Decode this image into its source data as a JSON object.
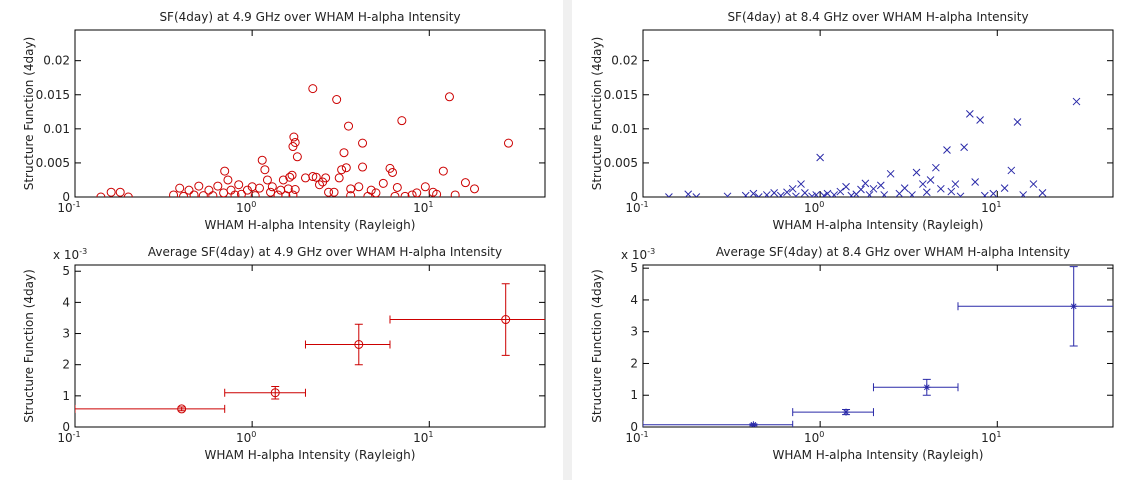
{
  "chart_data": [
    {
      "type": "scatter",
      "title": "SF(4day) at 4.9 GHz over WHAM H-alpha Intensity",
      "xlabel": "WHAM H-alpha Intensity (Rayleigh)",
      "ylabel": "Structure Function (4day)",
      "color": "#cc0000",
      "marker": "o",
      "xscale": "log",
      "xlim": [
        0.1,
        45
      ],
      "ylim": [
        0,
        0.0245
      ],
      "xticks": [
        {
          "value": 0.1,
          "label": "10",
          "exponent": "-1"
        },
        {
          "value": 1,
          "label": "10",
          "exponent": "0"
        },
        {
          "value": 10,
          "label": "10",
          "exponent": "1"
        }
      ],
      "yticks": [
        0,
        0.005,
        0.01,
        0.015,
        0.02
      ],
      "x": [
        0.14,
        0.16,
        0.18,
        0.2,
        0.36,
        0.39,
        0.41,
        0.44,
        0.47,
        0.5,
        0.53,
        0.57,
        0.6,
        0.64,
        0.69,
        0.7,
        0.73,
        0.76,
        0.8,
        0.84,
        0.87,
        0.94,
        1.0,
        1.04,
        1.1,
        1.14,
        1.18,
        1.22,
        1.27,
        1.3,
        1.4,
        1.45,
        1.5,
        1.55,
        1.6,
        1.63,
        1.68,
        1.7,
        1.75,
        1.7,
        1.72,
        1.75,
        1.8,
        2.0,
        2.2,
        2.5,
        2.6,
        2.7,
        2.2,
        2.3,
        2.4,
        2.9,
        3.1,
        3.3,
        3.4,
        3.5,
        3.6,
        3.0,
        3.2,
        3.6,
        4.0,
        4.2,
        4.2,
        4.5,
        4.7,
        5.0,
        5.5,
        6.0,
        6.2,
        6.4,
        7.0,
        6.6,
        7.3,
        8.0,
        8.5,
        9.5,
        10.5,
        11,
        12,
        13,
        14,
        16,
        18,
        28
      ],
      "values": [
        0,
        0.0007,
        0.0007,
        0,
        0.0003,
        0.0013,
        0.0001,
        0.001,
        0.0003,
        0.0016,
        0.0002,
        0.001,
        0.0002,
        0.0016,
        0.0006,
        0.0038,
        0.0025,
        0.001,
        0.0003,
        0.0018,
        0.0004,
        0.001,
        0.0015,
        0.0002,
        0.0013,
        0.0054,
        0.004,
        0.0025,
        0.0007,
        0.0015,
        0.0003,
        0.001,
        0.0025,
        0.0002,
        0.0012,
        0.0029,
        0.0032,
        0.0003,
        0.0011,
        0.0074,
        0.0088,
        0.008,
        0.0059,
        0.0028,
        0.003,
        0.0022,
        0.0028,
        0.0007,
        0.0159,
        0.0029,
        0.0018,
        0.0007,
        0.0028,
        0.0065,
        0.0043,
        0.0104,
        0.0012,
        0.0143,
        0.004,
        0.0002,
        0.0015,
        0.0044,
        0.0079,
        0.0001,
        0.001,
        0.0006,
        0.002,
        0.0042,
        0.0036,
        0.0001,
        0.0112,
        0.0014,
        0.0001,
        0.0003,
        0.0006,
        0.0015,
        0.0007,
        0.0004,
        0.0038,
        0.0147,
        0.0003,
        0.0021,
        0.0012,
        0.0079
      ]
    },
    {
      "type": "scatter",
      "title": "SF(4day) at 8.4 GHz over WHAM H-alpha Intensity",
      "xlabel": "WHAM H-alpha Intensity (Rayleigh)",
      "ylabel": "Structure Function (4day)",
      "color": "#2a2aa8",
      "marker": "x",
      "xscale": "log",
      "xlim": [
        0.1,
        45
      ],
      "ylim": [
        0,
        0.0245
      ],
      "xticks": [
        {
          "value": 0.1,
          "label": "10",
          "exponent": "-1"
        },
        {
          "value": 1,
          "label": "10",
          "exponent": "0"
        },
        {
          "value": 10,
          "label": "10",
          "exponent": "1"
        }
      ],
      "yticks": [
        0,
        0.005,
        0.01,
        0.015,
        0.02
      ],
      "x": [
        0.14,
        0.18,
        0.2,
        0.3,
        0.38,
        0.42,
        0.45,
        0.5,
        0.55,
        0.6,
        0.65,
        0.7,
        0.73,
        0.78,
        0.82,
        0.9,
        0.95,
        1.0,
        1.05,
        1.1,
        1.2,
        1.3,
        1.4,
        1.5,
        1.6,
        1.7,
        1.8,
        1.9,
        2.0,
        2.2,
        2.3,
        2.5,
        2.8,
        3.0,
        3.3,
        3.5,
        3.8,
        4.0,
        4.2,
        4.5,
        4.8,
        5.2,
        5.5,
        5.8,
        6.2,
        6.5,
        7.0,
        7.5,
        8.0,
        8.5,
        9.5,
        11,
        12,
        13,
        14,
        16,
        18,
        28
      ],
      "values": [
        0,
        0.0004,
        0,
        0.0001,
        0.0002,
        0.0005,
        0,
        0.0003,
        0.0006,
        0.0002,
        0.0007,
        0.0012,
        0.0001,
        0.0019,
        0.0006,
        0.0001,
        0.0003,
        0.0058,
        0.0002,
        0.0005,
        0.0003,
        0.0008,
        0.0015,
        0.0002,
        0.0004,
        0.0011,
        0.002,
        0.0003,
        0.0012,
        0.0017,
        0.0003,
        0.0034,
        0.0005,
        0.0013,
        0.0003,
        0.0036,
        0.0019,
        0.0007,
        0.0025,
        0.0043,
        0.0012,
        0.0069,
        0.0008,
        0.0019,
        0.0001,
        0.0073,
        0.0122,
        0.0022,
        0.0113,
        0.0002,
        0.0005,
        0.0013,
        0.0039,
        0.011,
        0.0003,
        0.0019,
        0.0006,
        0.014
      ]
    },
    {
      "type": "errorbar",
      "title": "Average SF(4day) at 4.9 GHz over WHAM H-alpha Intensity",
      "xlabel": "WHAM H-alpha Intensity (Rayleigh)",
      "ylabel": "Structure Function (4day)",
      "y_scale_label": "x 10",
      "y_scale_exponent": "-3",
      "color": "#cc0000",
      "marker": "o",
      "xscale": "log",
      "xlim": [
        0.1,
        45
      ],
      "ylim": [
        0,
        5.2
      ],
      "xticks": [
        {
          "value": 0.1,
          "label": "10",
          "exponent": "-1"
        },
        {
          "value": 1,
          "label": "10",
          "exponent": "0"
        },
        {
          "value": 10,
          "label": "10",
          "exponent": "1"
        }
      ],
      "yticks": [
        0,
        1,
        2,
        3,
        4,
        5
      ],
      "x": [
        0.4,
        1.35,
        4,
        27
      ],
      "values": [
        0.58,
        1.1,
        2.65,
        3.45
      ],
      "yerr": [
        0.06,
        0.2,
        0.65,
        1.15
      ],
      "x_lower": [
        0.1,
        0.7,
        2,
        6
      ],
      "x_upper": [
        0.7,
        2,
        6,
        50
      ]
    },
    {
      "type": "errorbar",
      "title": "Average SF(4day) at 8.4 GHz over WHAM H-alpha Intensity",
      "xlabel": "WHAM H-alpha Intensity (Rayleigh)",
      "ylabel": "Structure Function (4day)",
      "y_scale_label": "x 10",
      "y_scale_exponent": "-3",
      "color": "#2a2aa8",
      "marker": "*",
      "xscale": "log",
      "xlim": [
        0.1,
        45
      ],
      "ylim": [
        0,
        5.1
      ],
      "xticks": [
        {
          "value": 0.1,
          "label": "10",
          "exponent": "-1"
        },
        {
          "value": 1,
          "label": "10",
          "exponent": "0"
        },
        {
          "value": 10,
          "label": "10",
          "exponent": "1"
        }
      ],
      "yticks": [
        0,
        1,
        2,
        3,
        4,
        5
      ],
      "x": [
        0.42,
        1.4,
        4,
        27
      ],
      "values": [
        0.07,
        0.47,
        1.25,
        3.8
      ],
      "yerr": [
        0.03,
        0.08,
        0.25,
        1.25
      ],
      "x_lower": [
        0.1,
        0.7,
        2,
        6
      ],
      "x_upper": [
        0.7,
        2,
        6,
        50
      ]
    }
  ]
}
